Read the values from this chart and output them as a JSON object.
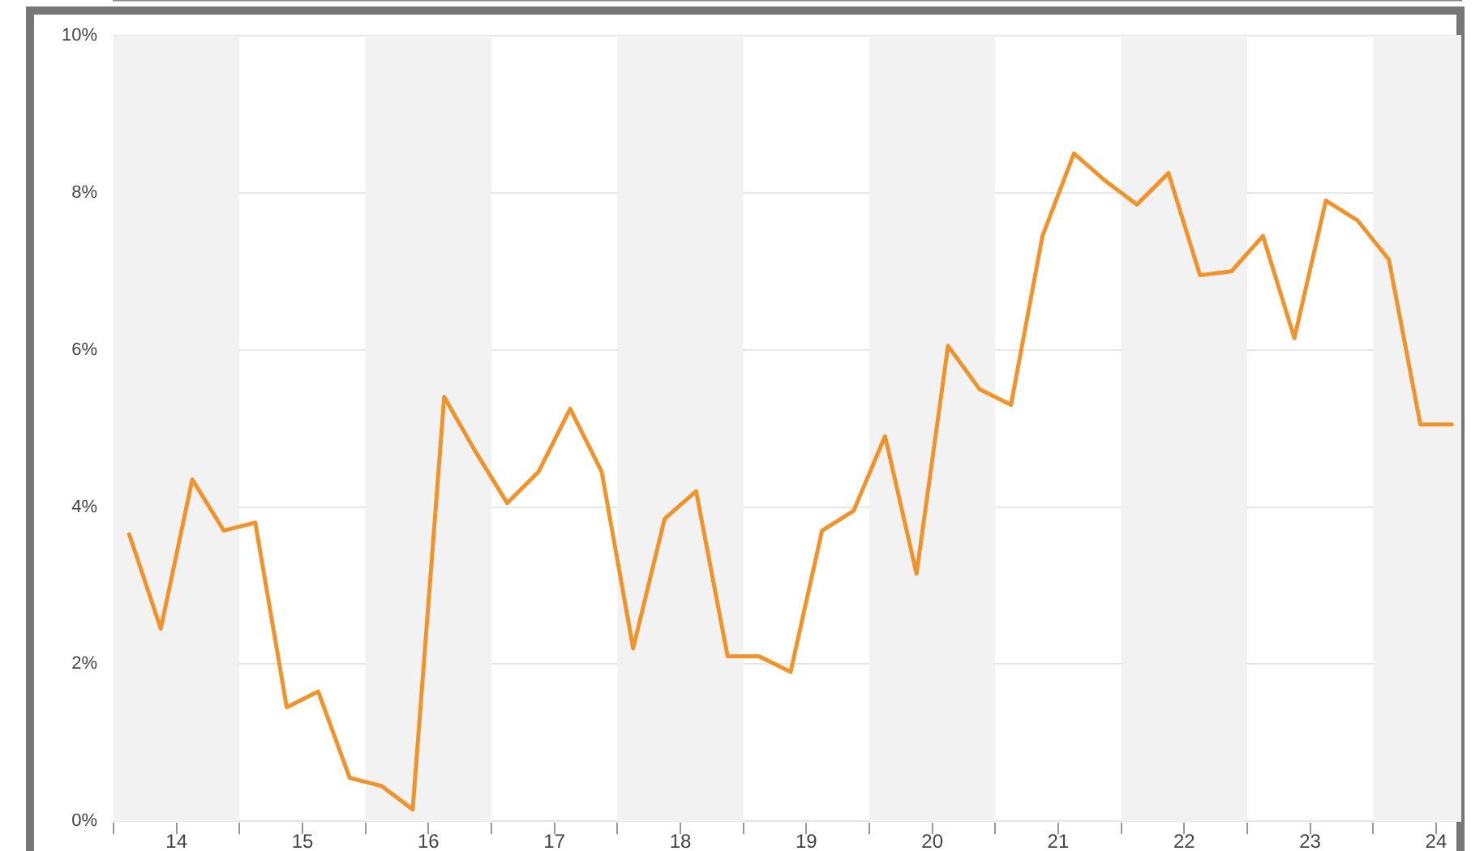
{
  "chart_data": {
    "type": "line",
    "x": [
      13.625,
      13.875,
      14.125,
      14.375,
      14.625,
      14.875,
      15.125,
      15.375,
      15.625,
      15.875,
      16.125,
      16.375,
      16.625,
      16.875,
      17.125,
      17.375,
      17.625,
      17.875,
      18.125,
      18.375,
      18.625,
      18.875,
      19.125,
      19.375,
      19.625,
      19.875,
      20.125,
      20.375,
      20.625,
      20.875,
      21.125,
      21.375,
      21.625,
      21.875,
      22.125,
      22.375,
      22.625,
      22.875,
      23.125,
      23.375,
      23.625,
      23.875,
      24.125
    ],
    "series": [
      {
        "color": "#f0932b",
        "values": [
          3.65,
          2.45,
          4.35,
          3.7,
          3.8,
          1.45,
          1.65,
          0.55,
          0.45,
          0.15,
          5.4,
          4.7,
          4.05,
          4.45,
          5.25,
          4.45,
          2.2,
          3.85,
          4.2,
          2.1,
          2.1,
          1.9,
          3.7,
          3.95,
          4.9,
          3.15,
          6.05,
          5.5,
          5.3,
          7.45,
          8.5,
          8.15,
          7.85,
          8.25,
          6.95,
          7.0,
          7.45,
          6.15,
          7.9,
          7.65,
          7.15,
          5.05,
          5.05
        ]
      }
    ],
    "xlim": [
      13.5,
      24.2
    ],
    "xticks": [
      {
        "value": 13.5,
        "label": null
      },
      14,
      {
        "value": 14.5,
        "label": null
      },
      15,
      {
        "value": 15.5,
        "label": null
      },
      16,
      {
        "value": 16.5,
        "label": null
      },
      17,
      {
        "value": 17.5,
        "label": null
      },
      18,
      {
        "value": 18.5,
        "label": null
      },
      19,
      {
        "value": 19.5,
        "label": null
      },
      20,
      {
        "value": 20.5,
        "label": null
      },
      21,
      {
        "value": 21.5,
        "label": null
      },
      22,
      {
        "value": 22.5,
        "label": null
      },
      23,
      {
        "value": 23.5,
        "label": null
      },
      24
    ],
    "ylim": [
      0,
      10
    ],
    "yticks": [
      {
        "value": 0,
        "label": "0%"
      },
      {
        "value": 2,
        "label": "2%"
      },
      {
        "value": 4,
        "label": "4%"
      },
      {
        "value": 6,
        "label": "6%"
      },
      {
        "value": 8,
        "label": "8%"
      },
      {
        "value": 10,
        "label": "10%"
      }
    ],
    "bands": [
      {
        "axis": "x",
        "from": 13.5,
        "to": 14.5,
        "color": "#f2f2f2"
      },
      {
        "axis": "x",
        "from": 15.5,
        "to": 16.5,
        "color": "#f2f2f2"
      },
      {
        "axis": "x",
        "from": 17.5,
        "to": 18.5,
        "color": "#f2f2f2"
      },
      {
        "axis": "x",
        "from": 19.5,
        "to": 20.5,
        "color": "#f2f2f2"
      },
      {
        "axis": "x",
        "from": 21.5,
        "to": 22.5,
        "color": "#f2f2f2"
      },
      {
        "axis": "x",
        "from": 23.5,
        "to": 24.2,
        "color": "#f2f2f2"
      }
    ],
    "grid": "y",
    "legend": false,
    "marker": "none",
    "line_style": "solid"
  }
}
